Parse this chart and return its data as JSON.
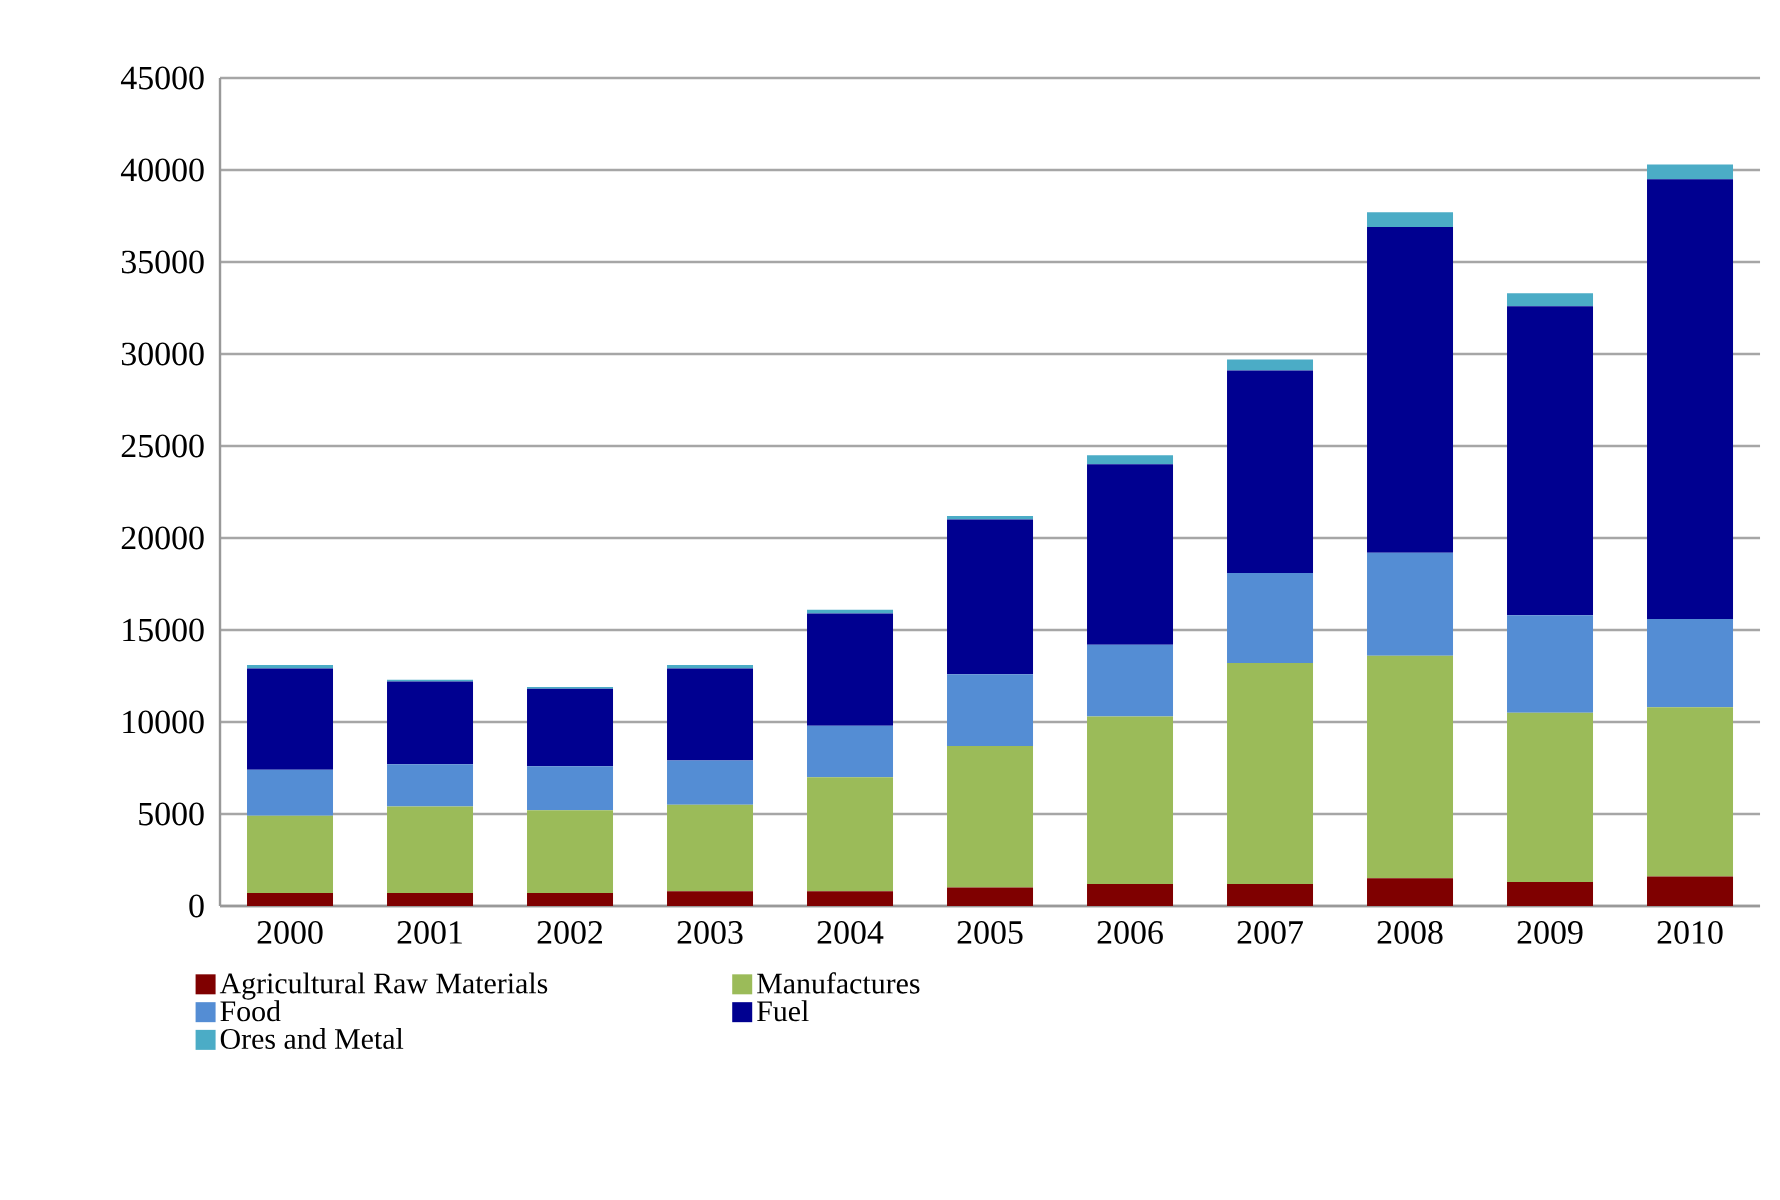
{
  "chart_data": {
    "type": "bar",
    "stacked": true,
    "categories": [
      "2000",
      "2001",
      "2002",
      "2003",
      "2004",
      "2005",
      "2006",
      "2007",
      "2008",
      "2009",
      "2010"
    ],
    "series": [
      {
        "name": "Agricultural Raw Materials",
        "color": "#7f0000",
        "values": [
          700,
          700,
          700,
          800,
          800,
          1000,
          1200,
          1200,
          1500,
          1300,
          1600
        ]
      },
      {
        "name": "Manufactures",
        "color": "#9bbb59",
        "values": [
          4200,
          4700,
          4500,
          4700,
          6200,
          7700,
          9100,
          12000,
          12100,
          9200,
          9200
        ]
      },
      {
        "name": "Food",
        "color": "#548dd4",
        "values": [
          2500,
          2300,
          2400,
          2400,
          2800,
          3900,
          3900,
          4900,
          5600,
          5300,
          4800
        ]
      },
      {
        "name": "Fuel",
        "color": "#000090",
        "values": [
          5500,
          4500,
          4200,
          5000,
          6100,
          8400,
          9800,
          11000,
          17700,
          16800,
          23900
        ]
      },
      {
        "name": "Ores and Metal",
        "color": "#4bacc6",
        "values": [
          200,
          100,
          100,
          200,
          200,
          200,
          500,
          600,
          800,
          700,
          800
        ]
      }
    ],
    "ylim": [
      0,
      45000
    ],
    "yticks": [
      0,
      5000,
      10000,
      15000,
      20000,
      25000,
      30000,
      35000,
      40000,
      45000
    ],
    "grid": "y",
    "legend": "bottom"
  }
}
